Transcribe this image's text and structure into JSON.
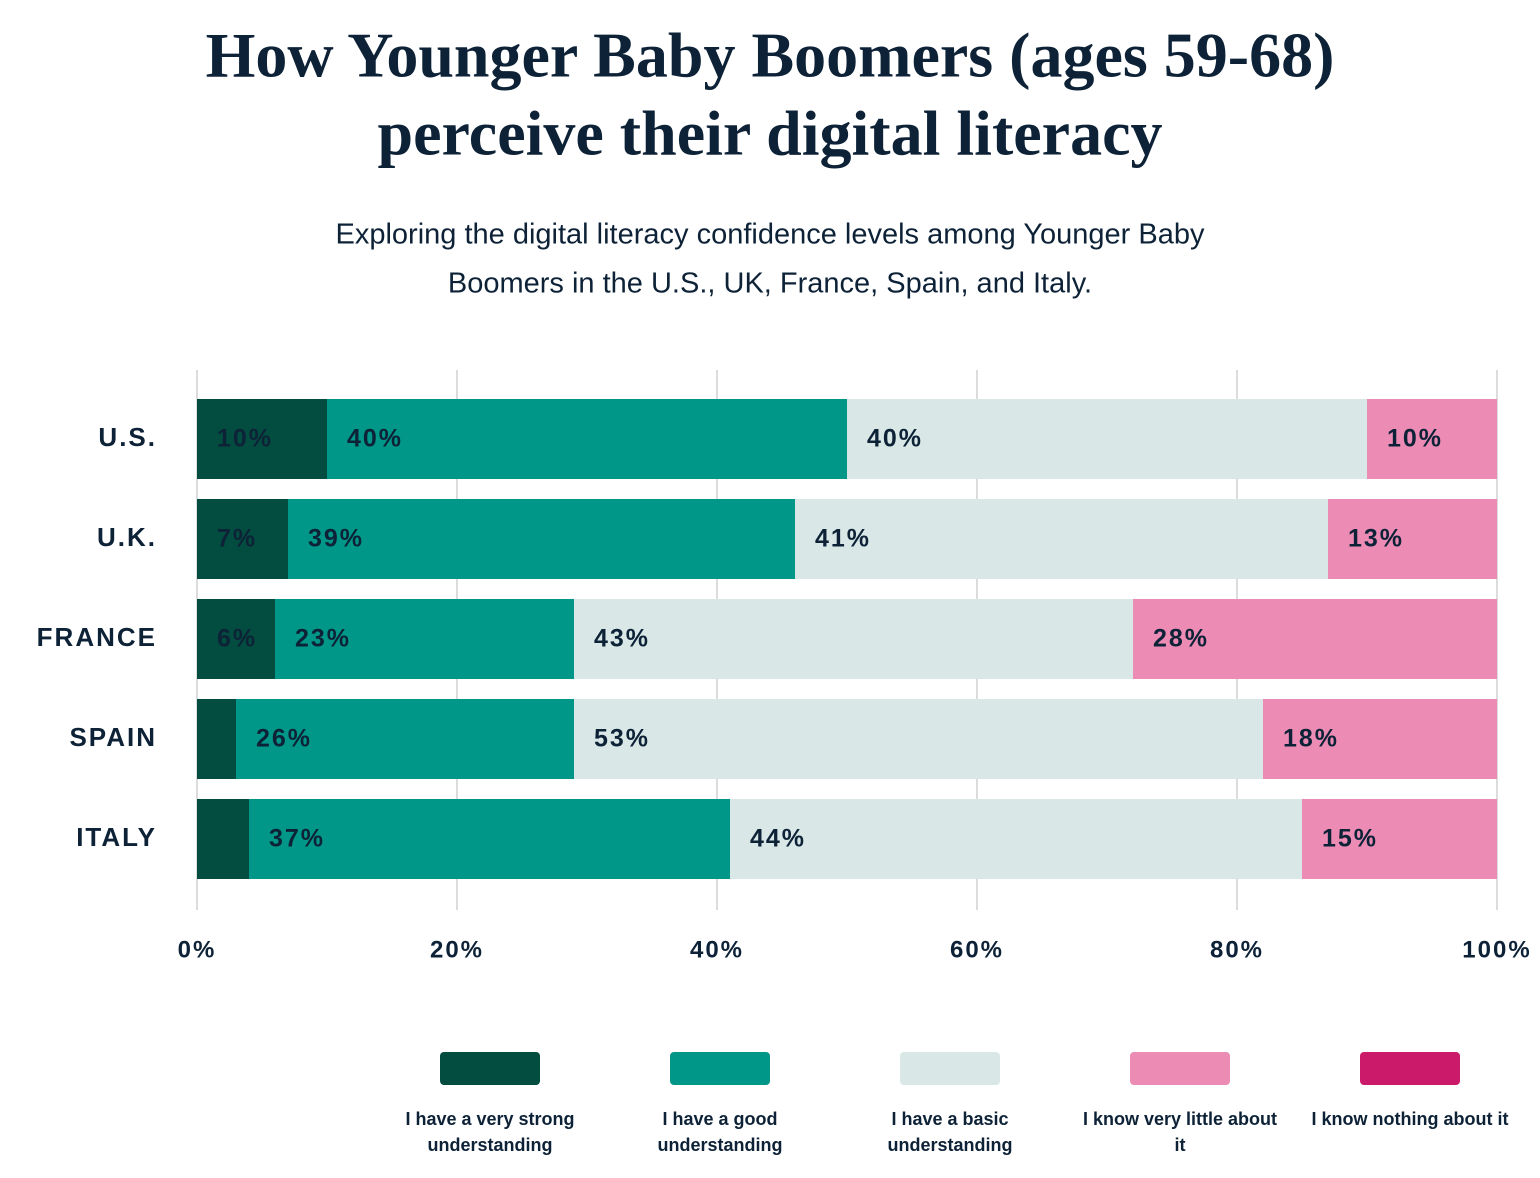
{
  "chart_data": {
    "type": "stacked_bar_horizontal",
    "title": [
      "How Younger Baby Boomers (ages 59-68)",
      "perceive their digital literacy"
    ],
    "subtitle": [
      "Exploring the digital literacy confidence levels among Younger Baby",
      "Boomers in the U.S., UK, France, Spain, and Italy."
    ],
    "categories": [
      "U.S.",
      "U.K.",
      "FRANCE",
      "SPAIN",
      "ITALY"
    ],
    "series": [
      {
        "name": "I have a very strong understanding",
        "color": "#034d40",
        "values": [
          10,
          7,
          6,
          3,
          4
        ],
        "value_labels": [
          "10%",
          "7%",
          "6%",
          null,
          null
        ]
      },
      {
        "name": "I have a good understanding",
        "color": "#009688",
        "values": [
          40,
          39,
          23,
          26,
          37
        ],
        "value_labels": [
          "40%",
          "39%",
          "23%",
          "26%",
          "37%"
        ]
      },
      {
        "name": "I have a basic understanding",
        "color": "#d9e8e7",
        "values": [
          40,
          41,
          43,
          53,
          44
        ],
        "value_labels": [
          "40%",
          "41%",
          "43%",
          "53%",
          "44%"
        ]
      },
      {
        "name": "I know very little about it",
        "color": "#ec8bb4",
        "values": [
          10,
          13,
          28,
          18,
          15
        ],
        "value_labels": [
          "10%",
          "13%",
          "28%",
          "18%",
          "15%"
        ]
      },
      {
        "name": "I know nothing about it",
        "color": "#cc1a6a",
        "values": [
          0,
          0,
          0,
          0,
          0
        ]
      }
    ],
    "xlim": [
      0,
      100
    ],
    "xticks": [
      {
        "value": 0,
        "label": "0%"
      },
      {
        "value": 20,
        "label": "20%"
      },
      {
        "value": 40,
        "label": "40%"
      },
      {
        "value": 60,
        "label": "60%"
      },
      {
        "value": 80,
        "label": "80%"
      },
      {
        "value": 100,
        "label": "100%"
      }
    ],
    "grid": true,
    "legend": "bottom"
  }
}
